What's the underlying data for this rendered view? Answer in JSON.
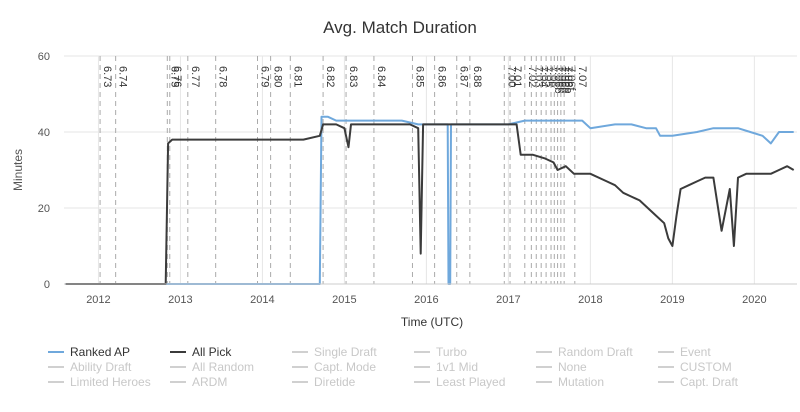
{
  "chart_data": {
    "type": "line",
    "title": "Avg. Match Duration",
    "xlabel": "Time (UTC)",
    "ylabel": "Minutes",
    "ylim": [
      0,
      60
    ],
    "yticks": [
      0,
      20,
      40,
      60
    ],
    "xlim": [
      2011.58,
      2020.52
    ],
    "xticks": [
      "2012",
      "2013",
      "2014",
      "2015",
      "2016",
      "2017",
      "2018",
      "2019",
      "2020"
    ],
    "grid": true,
    "legend_position": "bottom",
    "patches": [
      {
        "label": "6.73",
        "t": 2012.02
      },
      {
        "label": "6.74",
        "t": 2012.21
      },
      {
        "label": "6.75",
        "t": 2012.84
      },
      {
        "label": "6.76",
        "t": 2012.87
      },
      {
        "label": "6.77",
        "t": 2013.09
      },
      {
        "label": "6.78",
        "t": 2013.43
      },
      {
        "label": "6.79",
        "t": 2013.94
      },
      {
        "label": "6.80",
        "t": 2014.1
      },
      {
        "label": "6.81",
        "t": 2014.34
      },
      {
        "label": "6.82",
        "t": 2014.74
      },
      {
        "label": "6.83",
        "t": 2015.02
      },
      {
        "label": "6.84",
        "t": 2015.36
      },
      {
        "label": "6.85",
        "t": 2015.83
      },
      {
        "label": "6.86",
        "t": 2016.1
      },
      {
        "label": "6.87",
        "t": 2016.37
      },
      {
        "label": "6.88",
        "t": 2016.53
      },
      {
        "label": "7.00",
        "t": 2016.95
      },
      {
        "label": "7.01",
        "t": 2017.02
      },
      {
        "label": "7.02",
        "t": 2017.2
      },
      {
        "label": "7.03",
        "t": 2017.28
      },
      {
        "label": "7.04",
        "t": 2017.34
      },
      {
        "label": "7.05",
        "t": 2017.4
      },
      {
        "label": "7.06",
        "t": 2017.46
      },
      {
        "label": "7.06b",
        "t": 2017.52
      },
      {
        "label": "7.06c",
        "t": 2017.56
      },
      {
        "label": "7.06d",
        "t": 2017.6
      },
      {
        "label": "7.06e",
        "t": 2017.64
      },
      {
        "label": "7.06f",
        "t": 2017.68
      },
      {
        "label": "7.07",
        "t": 2017.81
      }
    ],
    "series": [
      {
        "name": "Ranked AP",
        "color": "#6fa8dc",
        "points": [
          [
            2011.6,
            0
          ],
          [
            2014.7,
            0
          ],
          [
            2014.72,
            44
          ],
          [
            2014.8,
            44
          ],
          [
            2014.9,
            43
          ],
          [
            2015.3,
            43
          ],
          [
            2015.7,
            43
          ],
          [
            2015.9,
            42
          ],
          [
            2016.1,
            42
          ],
          [
            2016.26,
            42
          ],
          [
            2016.27,
            0
          ],
          [
            2016.29,
            0
          ],
          [
            2016.3,
            42
          ],
          [
            2016.6,
            42
          ],
          [
            2017.0,
            42
          ],
          [
            2017.2,
            43
          ],
          [
            2017.5,
            43
          ],
          [
            2017.9,
            43
          ],
          [
            2018.0,
            41
          ],
          [
            2018.3,
            42
          ],
          [
            2018.5,
            42
          ],
          [
            2018.68,
            41
          ],
          [
            2018.8,
            41
          ],
          [
            2018.85,
            39
          ],
          [
            2019.0,
            39
          ],
          [
            2019.3,
            40
          ],
          [
            2019.5,
            41
          ],
          [
            2019.8,
            41
          ],
          [
            2019.95,
            40
          ],
          [
            2020.1,
            39
          ],
          [
            2020.2,
            37
          ],
          [
            2020.3,
            40
          ],
          [
            2020.42,
            40
          ],
          [
            2020.48,
            40
          ]
        ]
      },
      {
        "name": "All Pick",
        "color": "#3b3b3b",
        "points": [
          [
            2011.6,
            0
          ],
          [
            2012.82,
            0
          ],
          [
            2012.85,
            37
          ],
          [
            2012.9,
            38
          ],
          [
            2013.2,
            38
          ],
          [
            2013.6,
            38
          ],
          [
            2014.0,
            38
          ],
          [
            2014.5,
            38
          ],
          [
            2014.7,
            39
          ],
          [
            2014.74,
            42
          ],
          [
            2014.9,
            42
          ],
          [
            2015.0,
            41
          ],
          [
            2015.05,
            36
          ],
          [
            2015.08,
            42
          ],
          [
            2015.4,
            42
          ],
          [
            2015.8,
            42
          ],
          [
            2015.9,
            41
          ],
          [
            2015.93,
            8
          ],
          [
            2015.96,
            42
          ],
          [
            2016.2,
            42
          ],
          [
            2016.6,
            42
          ],
          [
            2016.9,
            42
          ],
          [
            2017.1,
            42
          ],
          [
            2017.15,
            34
          ],
          [
            2017.3,
            34
          ],
          [
            2017.45,
            33
          ],
          [
            2017.55,
            32
          ],
          [
            2017.6,
            30
          ],
          [
            2017.7,
            31
          ],
          [
            2017.8,
            29
          ],
          [
            2018.0,
            29
          ],
          [
            2018.2,
            27
          ],
          [
            2018.3,
            26
          ],
          [
            2018.4,
            24
          ],
          [
            2018.5,
            23
          ],
          [
            2018.6,
            22
          ],
          [
            2018.7,
            20
          ],
          [
            2018.8,
            18
          ],
          [
            2018.9,
            16
          ],
          [
            2018.95,
            12
          ],
          [
            2019.0,
            10
          ],
          [
            2019.05,
            18
          ],
          [
            2019.1,
            25
          ],
          [
            2019.2,
            26
          ],
          [
            2019.3,
            27
          ],
          [
            2019.4,
            28
          ],
          [
            2019.5,
            28
          ],
          [
            2019.6,
            14
          ],
          [
            2019.7,
            25
          ],
          [
            2019.75,
            10
          ],
          [
            2019.8,
            28
          ],
          [
            2019.9,
            29
          ],
          [
            2020.0,
            29
          ],
          [
            2020.2,
            29
          ],
          [
            2020.3,
            30
          ],
          [
            2020.4,
            31
          ],
          [
            2020.48,
            30
          ]
        ]
      }
    ]
  },
  "legend": {
    "items": [
      {
        "label": "Ranked AP",
        "color": "#6fa8dc",
        "active": true
      },
      {
        "label": "All Pick",
        "color": "#3b3b3b",
        "active": true
      },
      {
        "label": "Single Draft",
        "active": false
      },
      {
        "label": "Turbo",
        "active": false
      },
      {
        "label": "Random Draft",
        "active": false
      },
      {
        "label": "Event",
        "active": false
      },
      {
        "label": "Ability Draft",
        "active": false
      },
      {
        "label": "All Random",
        "active": false
      },
      {
        "label": "Capt. Mode",
        "active": false
      },
      {
        "label": "1v1 Mid",
        "active": false
      },
      {
        "label": "None",
        "active": false
      },
      {
        "label": "CUSTOM",
        "active": false
      },
      {
        "label": "Limited Heroes",
        "active": false
      },
      {
        "label": "ARDM",
        "active": false
      },
      {
        "label": "Diretide",
        "active": false
      },
      {
        "label": "Least Played",
        "active": false
      },
      {
        "label": "Mutation",
        "active": false
      },
      {
        "label": "Capt. Draft",
        "active": false
      }
    ]
  }
}
